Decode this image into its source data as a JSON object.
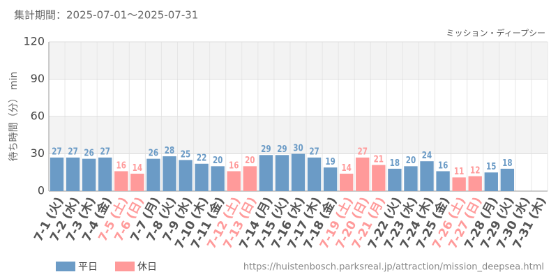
{
  "chart_data": {
    "type": "bar",
    "title": "集計期間：2025-07-01～2025-07-31",
    "subtitle": "ミッション・ディープシー",
    "y_label": "待ち時間（分） min",
    "source": "https://huistenbosch.parksreal.jp/attraction/mission_deepsea.html",
    "categories": [
      "7-1 (火)",
      "7-2 (水)",
      "7-3 (木)",
      "7-4 (金)",
      "7-5 (土)",
      "7-6 (日)",
      "7-7 (月)",
      "7-8 (火)",
      "7-9 (水)",
      "7-10 (木)",
      "7-11 (金)",
      "7-12 (土)",
      "7-13 (日)",
      "7-14 (月)",
      "7-15 (火)",
      "7-16 (水)",
      "7-17 (木)",
      "7-18 (金)",
      "7-19 (土)",
      "7-20 (日)",
      "7-21 (月)",
      "7-22 (火)",
      "7-23 (水)",
      "7-24 (木)",
      "7-25 (金)",
      "7-26 (土)",
      "7-27 (日)",
      "7-28 (月)",
      "7-29 (火)",
      "7-30 (水)",
      "7-31 (木)"
    ],
    "series": [
      {
        "name": "平日",
        "color": "#6b9bc6",
        "values": [
          27,
          27,
          26,
          27,
          null,
          null,
          26,
          28,
          25,
          22,
          20,
          null,
          null,
          29,
          29,
          30,
          27,
          19,
          null,
          null,
          null,
          18,
          20,
          24,
          16,
          null,
          null,
          15,
          18,
          null,
          null
        ]
      },
      {
        "name": "休日",
        "color": "#ff9a9a",
        "values": [
          null,
          null,
          null,
          null,
          16,
          14,
          null,
          null,
          null,
          null,
          null,
          16,
          20,
          null,
          null,
          null,
          null,
          null,
          14,
          27,
          21,
          null,
          null,
          null,
          null,
          11,
          12,
          null,
          null,
          null,
          null
        ]
      }
    ],
    "ylim": [
      0,
      120
    ],
    "yticks": [
      0,
      30,
      60,
      90,
      120
    ],
    "grid": true
  }
}
